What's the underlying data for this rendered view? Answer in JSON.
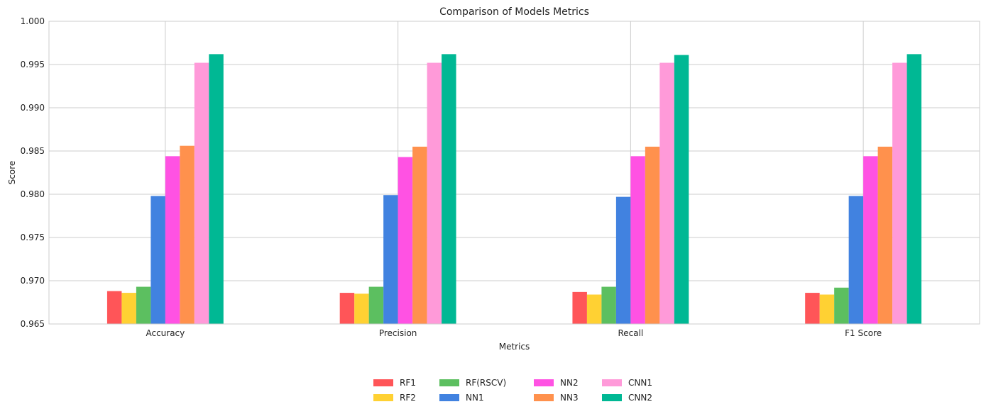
{
  "chart_data": {
    "type": "bar",
    "title": "Comparison of Models Metrics",
    "xlabel": "Metrics",
    "ylabel": "Score",
    "ylim": [
      0.965,
      1.0
    ],
    "yticks": [
      "0.965",
      "0.970",
      "0.975",
      "0.980",
      "0.985",
      "0.990",
      "0.995",
      "1.000"
    ],
    "grid": true,
    "legend_position": "bottom-center",
    "categories": [
      "Accuracy",
      "Precision",
      "Recall",
      "F1 Score"
    ],
    "series": [
      {
        "name": "RF1",
        "color": "#ff5558",
        "values": [
          0.9688,
          0.9686,
          0.9687,
          0.9686
        ]
      },
      {
        "name": "RF2",
        "color": "#ffd133",
        "values": [
          0.9686,
          0.9685,
          0.9684,
          0.9684
        ]
      },
      {
        "name": "RF(RSCV)",
        "color": "#5cbf60",
        "values": [
          0.9693,
          0.9693,
          0.9693,
          0.9692
        ]
      },
      {
        "name": "NN1",
        "color": "#4182e0",
        "values": [
          0.9798,
          0.9799,
          0.9797,
          0.9798
        ]
      },
      {
        "name": "NN2",
        "color": "#ff52e3",
        "values": [
          0.9844,
          0.9843,
          0.9844,
          0.9844
        ]
      },
      {
        "name": "NN3",
        "color": "#ff914d",
        "values": [
          0.9856,
          0.9855,
          0.9855,
          0.9855
        ]
      },
      {
        "name": "CNN1",
        "color": "#ff9ad9",
        "values": [
          0.9952,
          0.9952,
          0.9952,
          0.9952
        ]
      },
      {
        "name": "CNN2",
        "color": "#00b894",
        "values": [
          0.9962,
          0.9962,
          0.9961,
          0.9962
        ]
      }
    ]
  }
}
